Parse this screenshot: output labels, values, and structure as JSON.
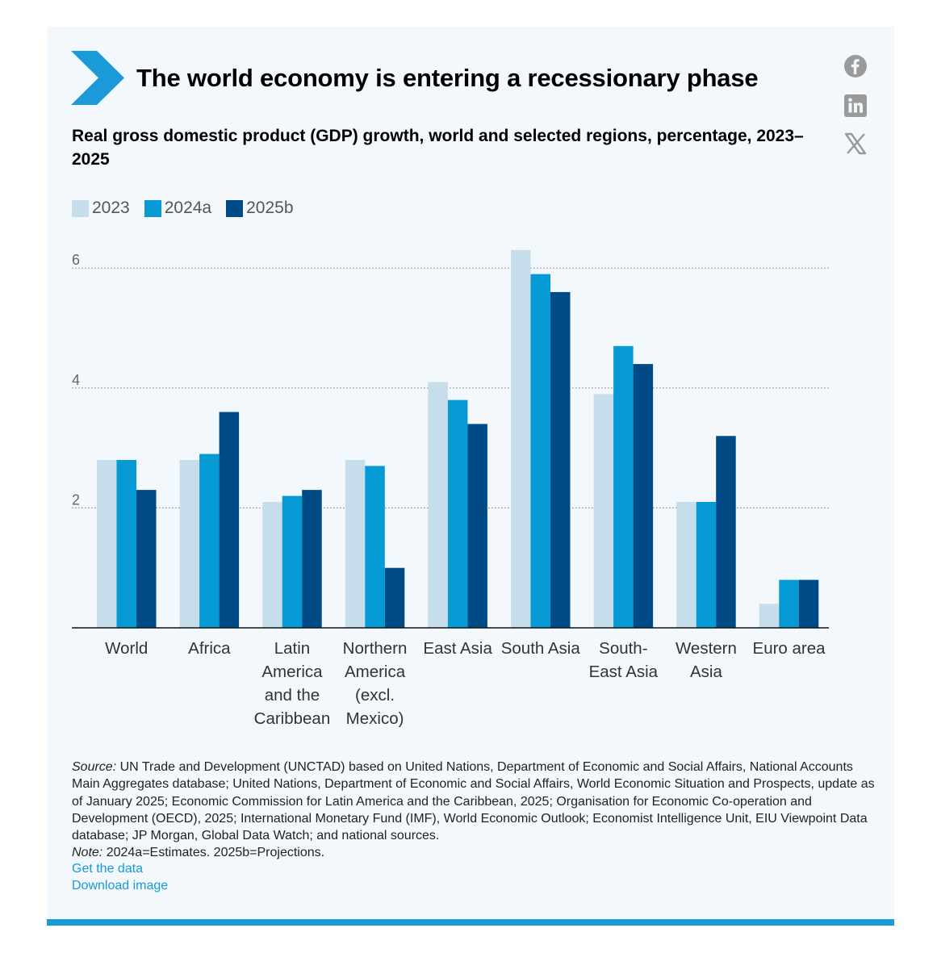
{
  "header": {
    "title": "The world economy is entering a recessionary phase",
    "subtitle": "Real gross domestic product (GDP) growth, world and selected regions, percentage, 2023–2025"
  },
  "share": {
    "icons": [
      "facebook-icon",
      "linkedin-icon",
      "x-icon"
    ]
  },
  "colors": {
    "2023": "#c6deec",
    "2024a": "#069ad5",
    "2025b": "#004a85",
    "accent": "#1a9ad6",
    "chevron": "#1a9ad6"
  },
  "chart_data": {
    "type": "bar",
    "title": "Real gross domestic product (GDP) growth, world and selected regions, percentage, 2023–2025",
    "categories": [
      [
        "World"
      ],
      [
        "Africa"
      ],
      [
        "Latin",
        "America",
        "and the",
        "Caribbean"
      ],
      [
        "Northern",
        "America",
        "(excl.",
        "Mexico)"
      ],
      [
        "East Asia"
      ],
      [
        "South Asia"
      ],
      [
        "South-",
        "East Asia"
      ],
      [
        "Western",
        "Asia"
      ],
      [
        "Euro area"
      ]
    ],
    "series": [
      {
        "name": "2023",
        "values": [
          2.8,
          2.8,
          2.1,
          2.8,
          4.1,
          6.3,
          3.9,
          2.1,
          0.4
        ]
      },
      {
        "name": "2024a",
        "values": [
          2.8,
          2.9,
          2.2,
          2.7,
          3.8,
          5.9,
          4.7,
          2.1,
          0.8
        ]
      },
      {
        "name": "2025b",
        "values": [
          2.3,
          3.6,
          2.3,
          1.0,
          3.4,
          5.6,
          4.4,
          3.2,
          0.8
        ]
      }
    ],
    "yticks": [
      2,
      4,
      6
    ],
    "ylim": [
      0,
      6.4
    ],
    "grid": true,
    "legend": "top-left",
    "xlabel": "",
    "ylabel": ""
  },
  "footer": {
    "source_label": "Source:",
    "source_text": " UN Trade and Development (UNCTAD) based on United Nations, Department of Economic and Social Affairs, National Accounts Main Aggregates database; United Nations, Department of Economic and Social Affairs, World Economic Situation and Prospects, update as of January 2025; Economic Commission for Latin America and the Caribbean, 2025; Organisation for Economic Co-operation and Development (OECD), 2025; International Monetary Fund (IMF), World Economic Outlook; Economist Intelligence Unit, EIU Viewpoint Data database; JP Morgan, Global Data Watch; and national sources.",
    "note_label": "Note:",
    "note_text": " 2024a=Estimates. 2025b=Projections.",
    "get_data": "Get the data",
    "download_image": "Download image"
  }
}
